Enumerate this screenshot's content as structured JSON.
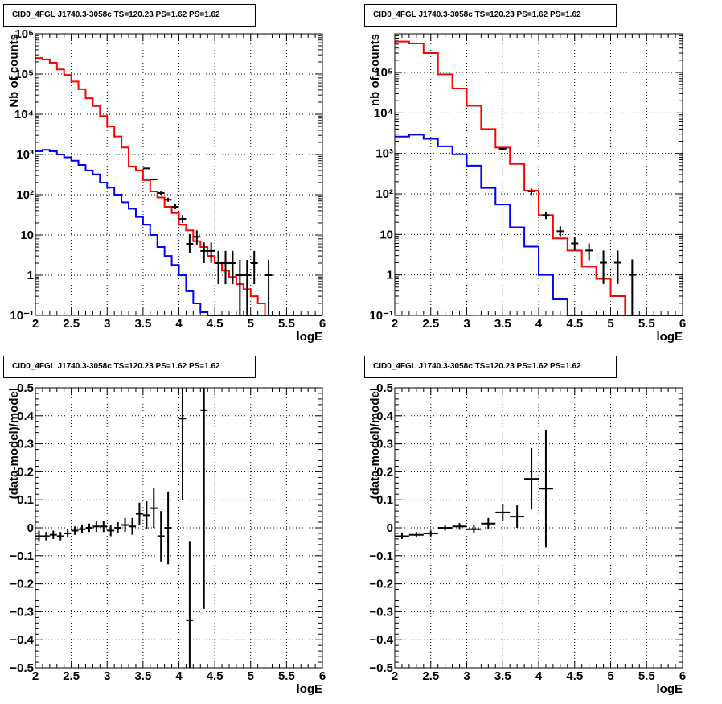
{
  "colors": {
    "data": "#000000",
    "model": "#ff0000",
    "background_model": "#0000ff",
    "frame": "#000000"
  },
  "chart_data": [
    {
      "type": "line",
      "title": "CID0_4FGL J1740.3-3058c TS=120.23 PS=1.62 PS=1.62",
      "xlabel": "logE",
      "ylabel": "Nb of counts",
      "xlim": [
        2,
        6
      ],
      "ylim": [
        0.1,
        1000000
      ],
      "yscale": "log",
      "grid": true,
      "x_ticks": [
        "2",
        "2.5",
        "3",
        "3.5",
        "4",
        "4.5",
        "5",
        "5.5",
        "6"
      ],
      "y_ticks": [
        "10⁻¹",
        "1",
        "10",
        "10²",
        "10³",
        "10⁴",
        "10⁵",
        "10⁶"
      ],
      "bin_edges": [
        2.0,
        2.1,
        2.2,
        2.3,
        2.4,
        2.5,
        2.6,
        2.7,
        2.8,
        2.9,
        3.0,
        3.1,
        3.2,
        3.3,
        3.4,
        3.5,
        3.6,
        3.7,
        3.8,
        3.9,
        4.0,
        4.1,
        4.2,
        4.3,
        4.4,
        4.5,
        4.6,
        4.7,
        4.8,
        4.9,
        5.0,
        5.1,
        5.2,
        5.3,
        5.4,
        5.5,
        5.6,
        5.7,
        5.8,
        5.9,
        6.0
      ],
      "series": [
        {
          "name": "model",
          "kind": "step",
          "values": [
            250000,
            230000,
            190000,
            130000,
            95000,
            65000,
            42000,
            25000,
            16000,
            9000,
            5000,
            2800,
            1500,
            500,
            400,
            230,
            120,
            85,
            50,
            35,
            18,
            13,
            7,
            5,
            3,
            2,
            1.3,
            0.9,
            0.6,
            0.45,
            0.3,
            0.2,
            0.1,
            0.1,
            0.1,
            0.1,
            0.1,
            0.1,
            0.1,
            0.1
          ]
        },
        {
          "name": "background",
          "kind": "step",
          "values": [
            1200,
            1300,
            1200,
            1000,
            850,
            700,
            550,
            400,
            320,
            200,
            150,
            100,
            65,
            45,
            28,
            18,
            10,
            5,
            3,
            1.8,
            1,
            0.4,
            0.2,
            0.12,
            0.1,
            0.1,
            0.1,
            0.1,
            0.1,
            0.1,
            0.1,
            0.1,
            0.1,
            0.1,
            0.1,
            0.1,
            0.1,
            0.1,
            0.1,
            0.1
          ]
        },
        {
          "name": "data",
          "kind": "points",
          "x": [
            3.55,
            3.65,
            3.75,
            3.85,
            3.95,
            4.05,
            4.15,
            4.25,
            4.35,
            4.45,
            4.55,
            4.65,
            4.75,
            4.85,
            4.95,
            5.05,
            5.25
          ],
          "y": [
            450,
            240,
            110,
            75,
            50,
            25,
            6,
            9,
            4,
            4,
            2,
            2,
            2,
            1,
            1,
            2,
            1
          ],
          "y_lo": [
            430,
            225,
            100,
            67,
            44,
            20,
            3.5,
            5.8,
            2,
            2,
            0.6,
            0.6,
            0.6,
            0.1,
            0.1,
            0.6,
            0.1
          ],
          "y_hi": [
            470,
            255,
            120,
            84,
            58,
            31,
            10.5,
            13,
            6.5,
            6.5,
            4,
            4,
            4,
            2.4,
            2.4,
            4,
            2.4
          ]
        }
      ]
    },
    {
      "type": "line",
      "title": "CID0_4FGL J1740.3-3058c TS=120.23 PS=1.62 PS=1.62",
      "xlabel": "logE",
      "ylabel": "nb of counts",
      "xlim": [
        2,
        6
      ],
      "ylim": [
        0.1,
        900000
      ],
      "yscale": "log",
      "grid": true,
      "x_ticks": [
        "2",
        "2.5",
        "3",
        "3.5",
        "4",
        "4.5",
        "5",
        "5.5",
        "6"
      ],
      "y_ticks": [
        "10⁻¹",
        "1",
        "10",
        "10²",
        "10³",
        "10⁴",
        "10⁵"
      ],
      "bin_edges": [
        2.0,
        2.2,
        2.4,
        2.6,
        2.8,
        3.0,
        3.2,
        3.4,
        3.6,
        3.8,
        4.0,
        4.2,
        4.4,
        4.6,
        4.8,
        5.0,
        5.2,
        5.4,
        5.6,
        5.8,
        6.0
      ],
      "series": [
        {
          "name": "model",
          "kind": "step",
          "values": [
            580000,
            520000,
            300000,
            90000,
            40000,
            15000,
            4000,
            1400,
            550,
            120,
            30,
            8,
            4,
            1.6,
            0.8,
            0.3,
            0.1,
            0.1,
            0.1,
            0.1
          ]
        },
        {
          "name": "background",
          "kind": "step",
          "values": [
            2600,
            2900,
            2300,
            1500,
            950,
            500,
            140,
            55,
            15,
            5,
            1,
            0.25,
            0.1,
            0.1,
            0.1,
            0.1,
            0.1,
            0.1,
            0.1,
            0.1
          ]
        },
        {
          "name": "data",
          "kind": "points",
          "x": [
            3.5,
            3.9,
            4.1,
            4.3,
            4.5,
            4.7,
            4.9,
            5.1,
            5.3
          ],
          "y": [
            1300,
            115,
            30,
            12,
            6,
            4,
            2,
            2,
            1
          ],
          "y_lo": [
            1230,
            94,
            24,
            9,
            4,
            2.3,
            0.6,
            0.6,
            0.1
          ],
          "y_hi": [
            1370,
            136,
            36,
            16,
            8.5,
            6,
            4,
            4,
            2.4
          ]
        }
      ]
    },
    {
      "type": "scatter",
      "title": "CID0_4FGL J1740.3-3058c TS=120.23 PS=1.62 PS=1.62",
      "xlabel": "logE",
      "ylabel": "(data-model)/model",
      "xlim": [
        2,
        6
      ],
      "ylim": [
        -0.5,
        0.5
      ],
      "grid": true,
      "x_ticks": [
        "2",
        "2.5",
        "3",
        "3.5",
        "4",
        "4.5",
        "5",
        "5.5",
        "6"
      ],
      "y_ticks": [
        "−0.5",
        "−0.4",
        "−0.3",
        "−0.2",
        "−0.1",
        "0",
        "0.1",
        "0.2",
        "0.3",
        "0.4",
        "0.5"
      ],
      "series": [
        {
          "name": "residuals",
          "x": [
            2.05,
            2.15,
            2.25,
            2.35,
            2.45,
            2.55,
            2.65,
            2.75,
            2.85,
            2.95,
            3.05,
            3.15,
            3.25,
            3.35,
            3.45,
            3.55,
            3.65,
            3.75,
            3.85,
            4.05,
            4.15,
            4.35
          ],
          "x_err": 0.05,
          "y": [
            -0.03,
            -0.03,
            -0.025,
            -0.03,
            -0.02,
            -0.01,
            -0.005,
            0.0,
            0.005,
            0.005,
            -0.01,
            0.0,
            0.01,
            0.005,
            0.05,
            0.045,
            0.07,
            -0.03,
            0.0,
            0.39,
            -0.33,
            0.42
          ],
          "y_err": [
            0.02,
            0.015,
            0.015,
            0.015,
            0.015,
            0.015,
            0.015,
            0.015,
            0.02,
            0.02,
            0.02,
            0.02,
            0.025,
            0.03,
            0.04,
            0.05,
            0.07,
            0.09,
            0.13,
            0.29,
            0.28,
            0.71
          ]
        }
      ]
    },
    {
      "type": "scatter",
      "title": "CID0_4FGL J1740.3-3058c TS=120.23 PS=1.62 PS=1.62",
      "xlabel": "logE",
      "ylabel": "(data-model)/model",
      "xlim": [
        2,
        6
      ],
      "ylim": [
        -0.5,
        0.5
      ],
      "grid": true,
      "x_ticks": [
        "2",
        "2.5",
        "3",
        "3.5",
        "4",
        "4.5",
        "5",
        "5.5",
        "6"
      ],
      "y_ticks": [
        "−0.5",
        "−0.4",
        "−0.3",
        "−0.2",
        "−0.1",
        "0",
        "0.1",
        "0.2",
        "0.3",
        "0.4",
        "0.5"
      ],
      "series": [
        {
          "name": "residuals",
          "x": [
            2.1,
            2.3,
            2.5,
            2.7,
            2.9,
            3.1,
            3.3,
            3.5,
            3.7,
            3.9,
            4.1
          ],
          "x_err": 0.1,
          "y": [
            -0.03,
            -0.025,
            -0.02,
            0.0,
            0.005,
            -0.005,
            0.015,
            0.055,
            0.04,
            0.175,
            0.14
          ],
          "y_err": [
            0.01,
            0.01,
            0.01,
            0.01,
            0.012,
            0.015,
            0.02,
            0.03,
            0.04,
            0.11,
            0.21
          ]
        }
      ]
    }
  ]
}
